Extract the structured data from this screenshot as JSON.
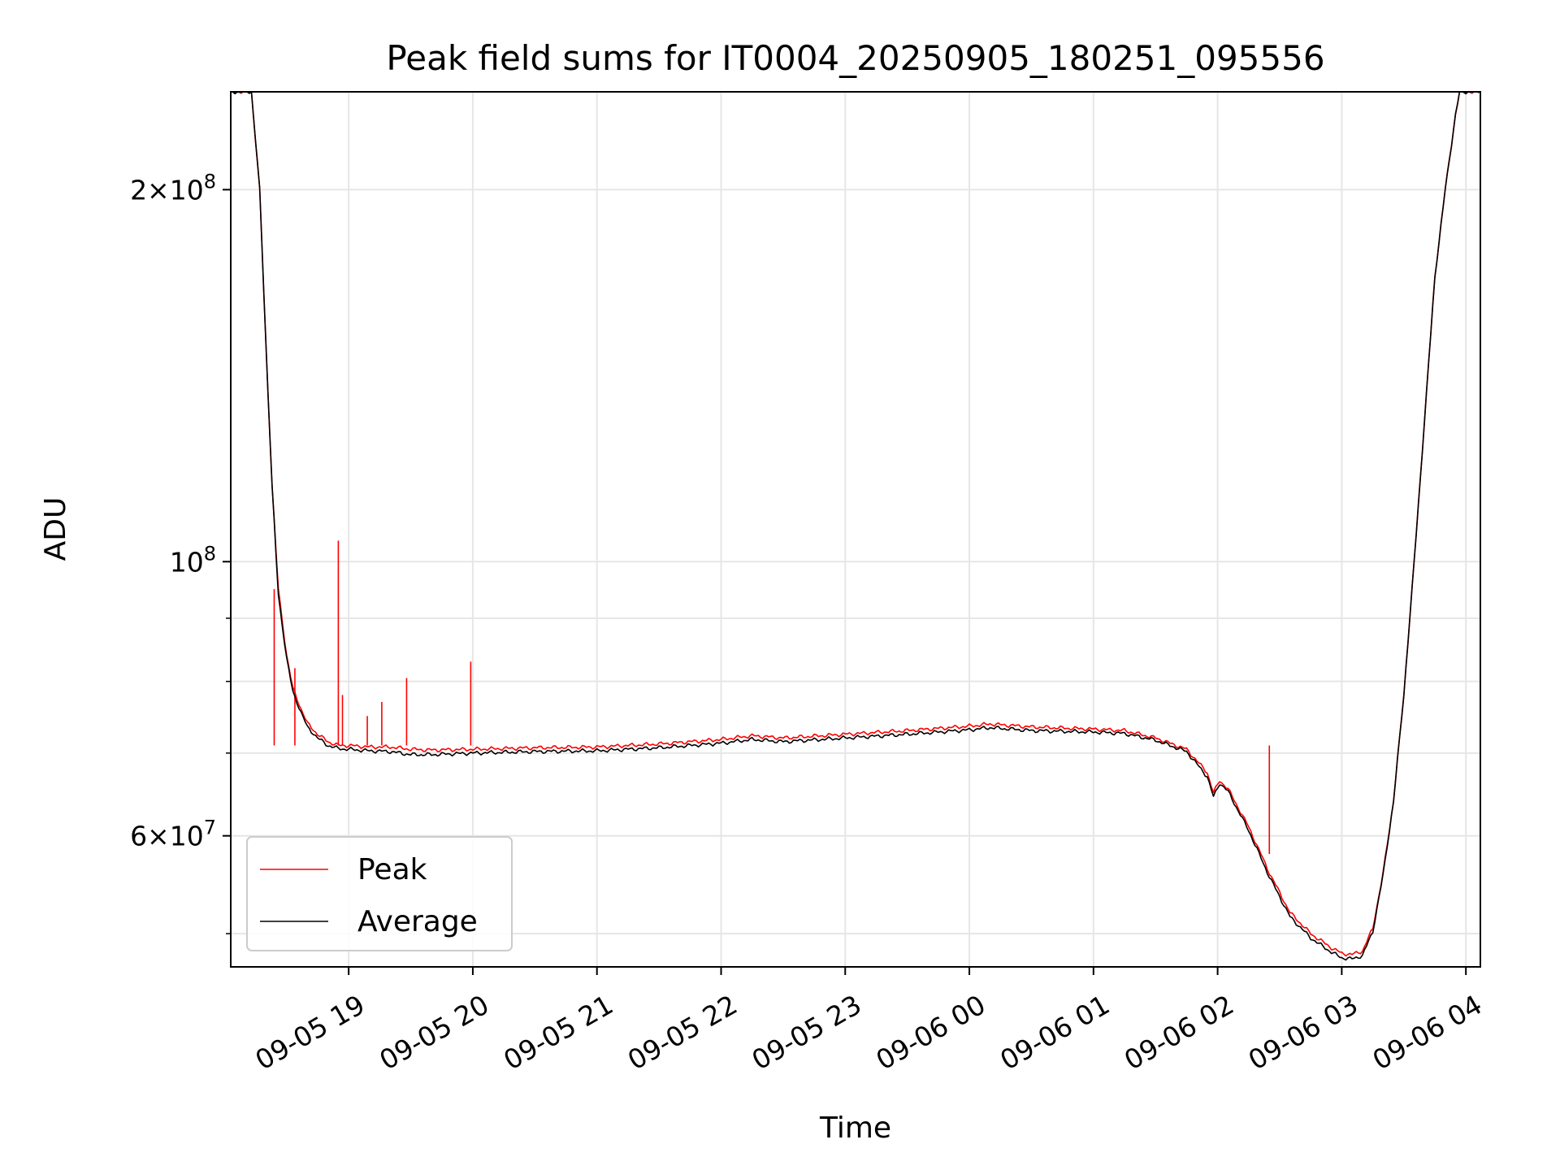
{
  "chart_data": {
    "type": "line",
    "title": "Peak field sums for IT0004_20250905_180251_095556",
    "xlabel": "Time",
    "ylabel": "ADU",
    "yscale": "log",
    "ylim": [
      47000000,
      240000000
    ],
    "xlim": [
      "2025-09-05 18:03",
      "2025-09-06 04:07"
    ],
    "grid": true,
    "legend_position": "lower-left",
    "x_ticks": [
      {
        "value": "2025-09-05 19:00",
        "label": "09-05 19"
      },
      {
        "value": "2025-09-05 20:00",
        "label": "09-05 20"
      },
      {
        "value": "2025-09-05 21:00",
        "label": "09-05 21"
      },
      {
        "value": "2025-09-05 22:00",
        "label": "09-05 22"
      },
      {
        "value": "2025-09-05 23:00",
        "label": "09-05 23"
      },
      {
        "value": "2025-09-06 00:00",
        "label": "09-06 00"
      },
      {
        "value": "2025-09-06 01:00",
        "label": "09-06 01"
      },
      {
        "value": "2025-09-06 02:00",
        "label": "09-06 02"
      },
      {
        "value": "2025-09-06 03:00",
        "label": "09-06 03"
      },
      {
        "value": "2025-09-06 04:00",
        "label": "09-06 04"
      }
    ],
    "y_ticks": [
      {
        "value": 60000000,
        "mantissa": "6",
        "exponent": "7",
        "label": "6×10^7"
      },
      {
        "value": 100000000,
        "mantissa": "",
        "exponent": "8",
        "label": "10^8"
      },
      {
        "value": 200000000,
        "mantissa": "2",
        "exponent": "8",
        "label": "2×10^8"
      }
    ],
    "y_minor_ticks": [
      50000000,
      70000000,
      80000000,
      90000000
    ],
    "series": [
      {
        "name": "Peak",
        "color": "#ff0000",
        "x": [
          "2025-09-05 18:03",
          "2025-09-05 18:13",
          "2025-09-05 18:17",
          "2025-09-05 18:20",
          "2025-09-05 18:23",
          "2025-09-05 18:26",
          "2025-09-05 18:30",
          "2025-09-05 18:33",
          "2025-09-05 18:37",
          "2025-09-05 18:40",
          "2025-09-05 18:45",
          "2025-09-05 18:50",
          "2025-09-05 18:55",
          "2025-09-05 19:00",
          "2025-09-05 19:10",
          "2025-09-05 19:20",
          "2025-09-05 19:30",
          "2025-09-05 19:40",
          "2025-09-05 20:00",
          "2025-09-05 20:30",
          "2025-09-05 21:00",
          "2025-09-05 21:30",
          "2025-09-05 22:00",
          "2025-09-05 22:15",
          "2025-09-05 22:30",
          "2025-09-05 23:00",
          "2025-09-05 23:30",
          "2025-09-06 00:00",
          "2025-09-06 00:10",
          "2025-09-06 00:30",
          "2025-09-06 01:00",
          "2025-09-06 01:15",
          "2025-09-06 01:30",
          "2025-09-06 01:45",
          "2025-09-06 01:55",
          "2025-09-06 01:58",
          "2025-09-06 02:01",
          "2025-09-06 02:05",
          "2025-09-06 02:15",
          "2025-09-06 02:25",
          "2025-09-06 02:35",
          "2025-09-06 02:45",
          "2025-09-06 02:55",
          "2025-09-06 03:00",
          "2025-09-06 03:05",
          "2025-09-06 03:10",
          "2025-09-06 03:15",
          "2025-09-06 03:20",
          "2025-09-06 03:25",
          "2025-09-06 03:30",
          "2025-09-06 03:35",
          "2025-09-06 03:40",
          "2025-09-06 03:45",
          "2025-09-06 03:50",
          "2025-09-06 03:55",
          "2025-09-06 03:57",
          "2025-09-06 04:00",
          "2025-09-06 04:07"
        ],
        "y": [
          240000000,
          240000000,
          200000000,
          150000000,
          115000000,
          95000000,
          84000000,
          79000000,
          76000000,
          74000000,
          72500000,
          71500000,
          71000000,
          71000000,
          70800000,
          70800000,
          70500000,
          70400000,
          70500000,
          70700000,
          70800000,
          71200000,
          71800000,
          72300000,
          72000000,
          72500000,
          73000000,
          73600000,
          73900000,
          73500000,
          73200000,
          73000000,
          72000000,
          70500000,
          67500000,
          65000000,
          66500000,
          65500000,
          61000000,
          56000000,
          52000000,
          50000000,
          48700000,
          48200000,
          48100000,
          48400000,
          50500000,
          56000000,
          64000000,
          78000000,
          100000000,
          130000000,
          170000000,
          200000000,
          230000000,
          240000000,
          240000000,
          240000000
        ],
        "spikes": [
          {
            "x": "2025-09-05 18:55",
            "y": 104000000
          },
          {
            "x": "2025-09-05 18:57",
            "y": 78000000
          },
          {
            "x": "2025-09-05 19:09",
            "y": 75000000
          },
          {
            "x": "2025-09-05 19:16",
            "y": 77000000
          },
          {
            "x": "2025-09-05 19:28",
            "y": 80500000
          },
          {
            "x": "2025-09-05 19:59",
            "y": 83000000
          },
          {
            "x": "2025-09-05 18:34",
            "y": 82000000
          },
          {
            "x": "2025-09-05 18:24",
            "y": 95000000
          },
          {
            "x": "2025-09-06 02:25",
            "y": 58000000
          }
        ]
      },
      {
        "name": "Average",
        "color": "#000000",
        "x": [
          "2025-09-05 18:03",
          "2025-09-05 18:13",
          "2025-09-05 18:17",
          "2025-09-05 18:20",
          "2025-09-05 18:23",
          "2025-09-05 18:26",
          "2025-09-05 18:30",
          "2025-09-05 18:33",
          "2025-09-05 18:37",
          "2025-09-05 18:40",
          "2025-09-05 18:45",
          "2025-09-05 18:50",
          "2025-09-05 18:55",
          "2025-09-05 19:00",
          "2025-09-05 19:10",
          "2025-09-05 19:20",
          "2025-09-05 19:30",
          "2025-09-05 19:40",
          "2025-09-05 20:00",
          "2025-09-05 20:30",
          "2025-09-05 21:00",
          "2025-09-05 21:30",
          "2025-09-05 22:00",
          "2025-09-05 22:15",
          "2025-09-05 22:30",
          "2025-09-05 23:00",
          "2025-09-05 23:30",
          "2025-09-06 00:00",
          "2025-09-06 00:10",
          "2025-09-06 00:30",
          "2025-09-06 01:00",
          "2025-09-06 01:15",
          "2025-09-06 01:30",
          "2025-09-06 01:45",
          "2025-09-06 01:55",
          "2025-09-06 01:58",
          "2025-09-06 02:01",
          "2025-09-06 02:05",
          "2025-09-06 02:15",
          "2025-09-06 02:25",
          "2025-09-06 02:35",
          "2025-09-06 02:45",
          "2025-09-06 02:55",
          "2025-09-06 03:00",
          "2025-09-06 03:05",
          "2025-09-06 03:10",
          "2025-09-06 03:15",
          "2025-09-06 03:20",
          "2025-09-06 03:25",
          "2025-09-06 03:30",
          "2025-09-06 03:35",
          "2025-09-06 03:40",
          "2025-09-06 03:45",
          "2025-09-06 03:50",
          "2025-09-06 03:55",
          "2025-09-06 03:57",
          "2025-09-06 04:00",
          "2025-09-06 04:07"
        ],
        "y": [
          240000000,
          240000000,
          200000000,
          150000000,
          115000000,
          94000000,
          83500000,
          78500000,
          75500000,
          73500000,
          72000000,
          71000000,
          70600000,
          70500000,
          70300000,
          70200000,
          69800000,
          69800000,
          70000000,
          70200000,
          70300000,
          70700000,
          71300000,
          71800000,
          71500000,
          72000000,
          72500000,
          73100000,
          73400000,
          73000000,
          72800000,
          72600000,
          71700000,
          70200000,
          67000000,
          64500000,
          66200000,
          65200000,
          60600000,
          55600000,
          51600000,
          49600000,
          48300000,
          47800000,
          47700000,
          48000000,
          50200000,
          55800000,
          64000000,
          78000000,
          100000000,
          130000000,
          170000000,
          200000000,
          230000000,
          240000000,
          240000000,
          240000000
        ]
      }
    ]
  }
}
